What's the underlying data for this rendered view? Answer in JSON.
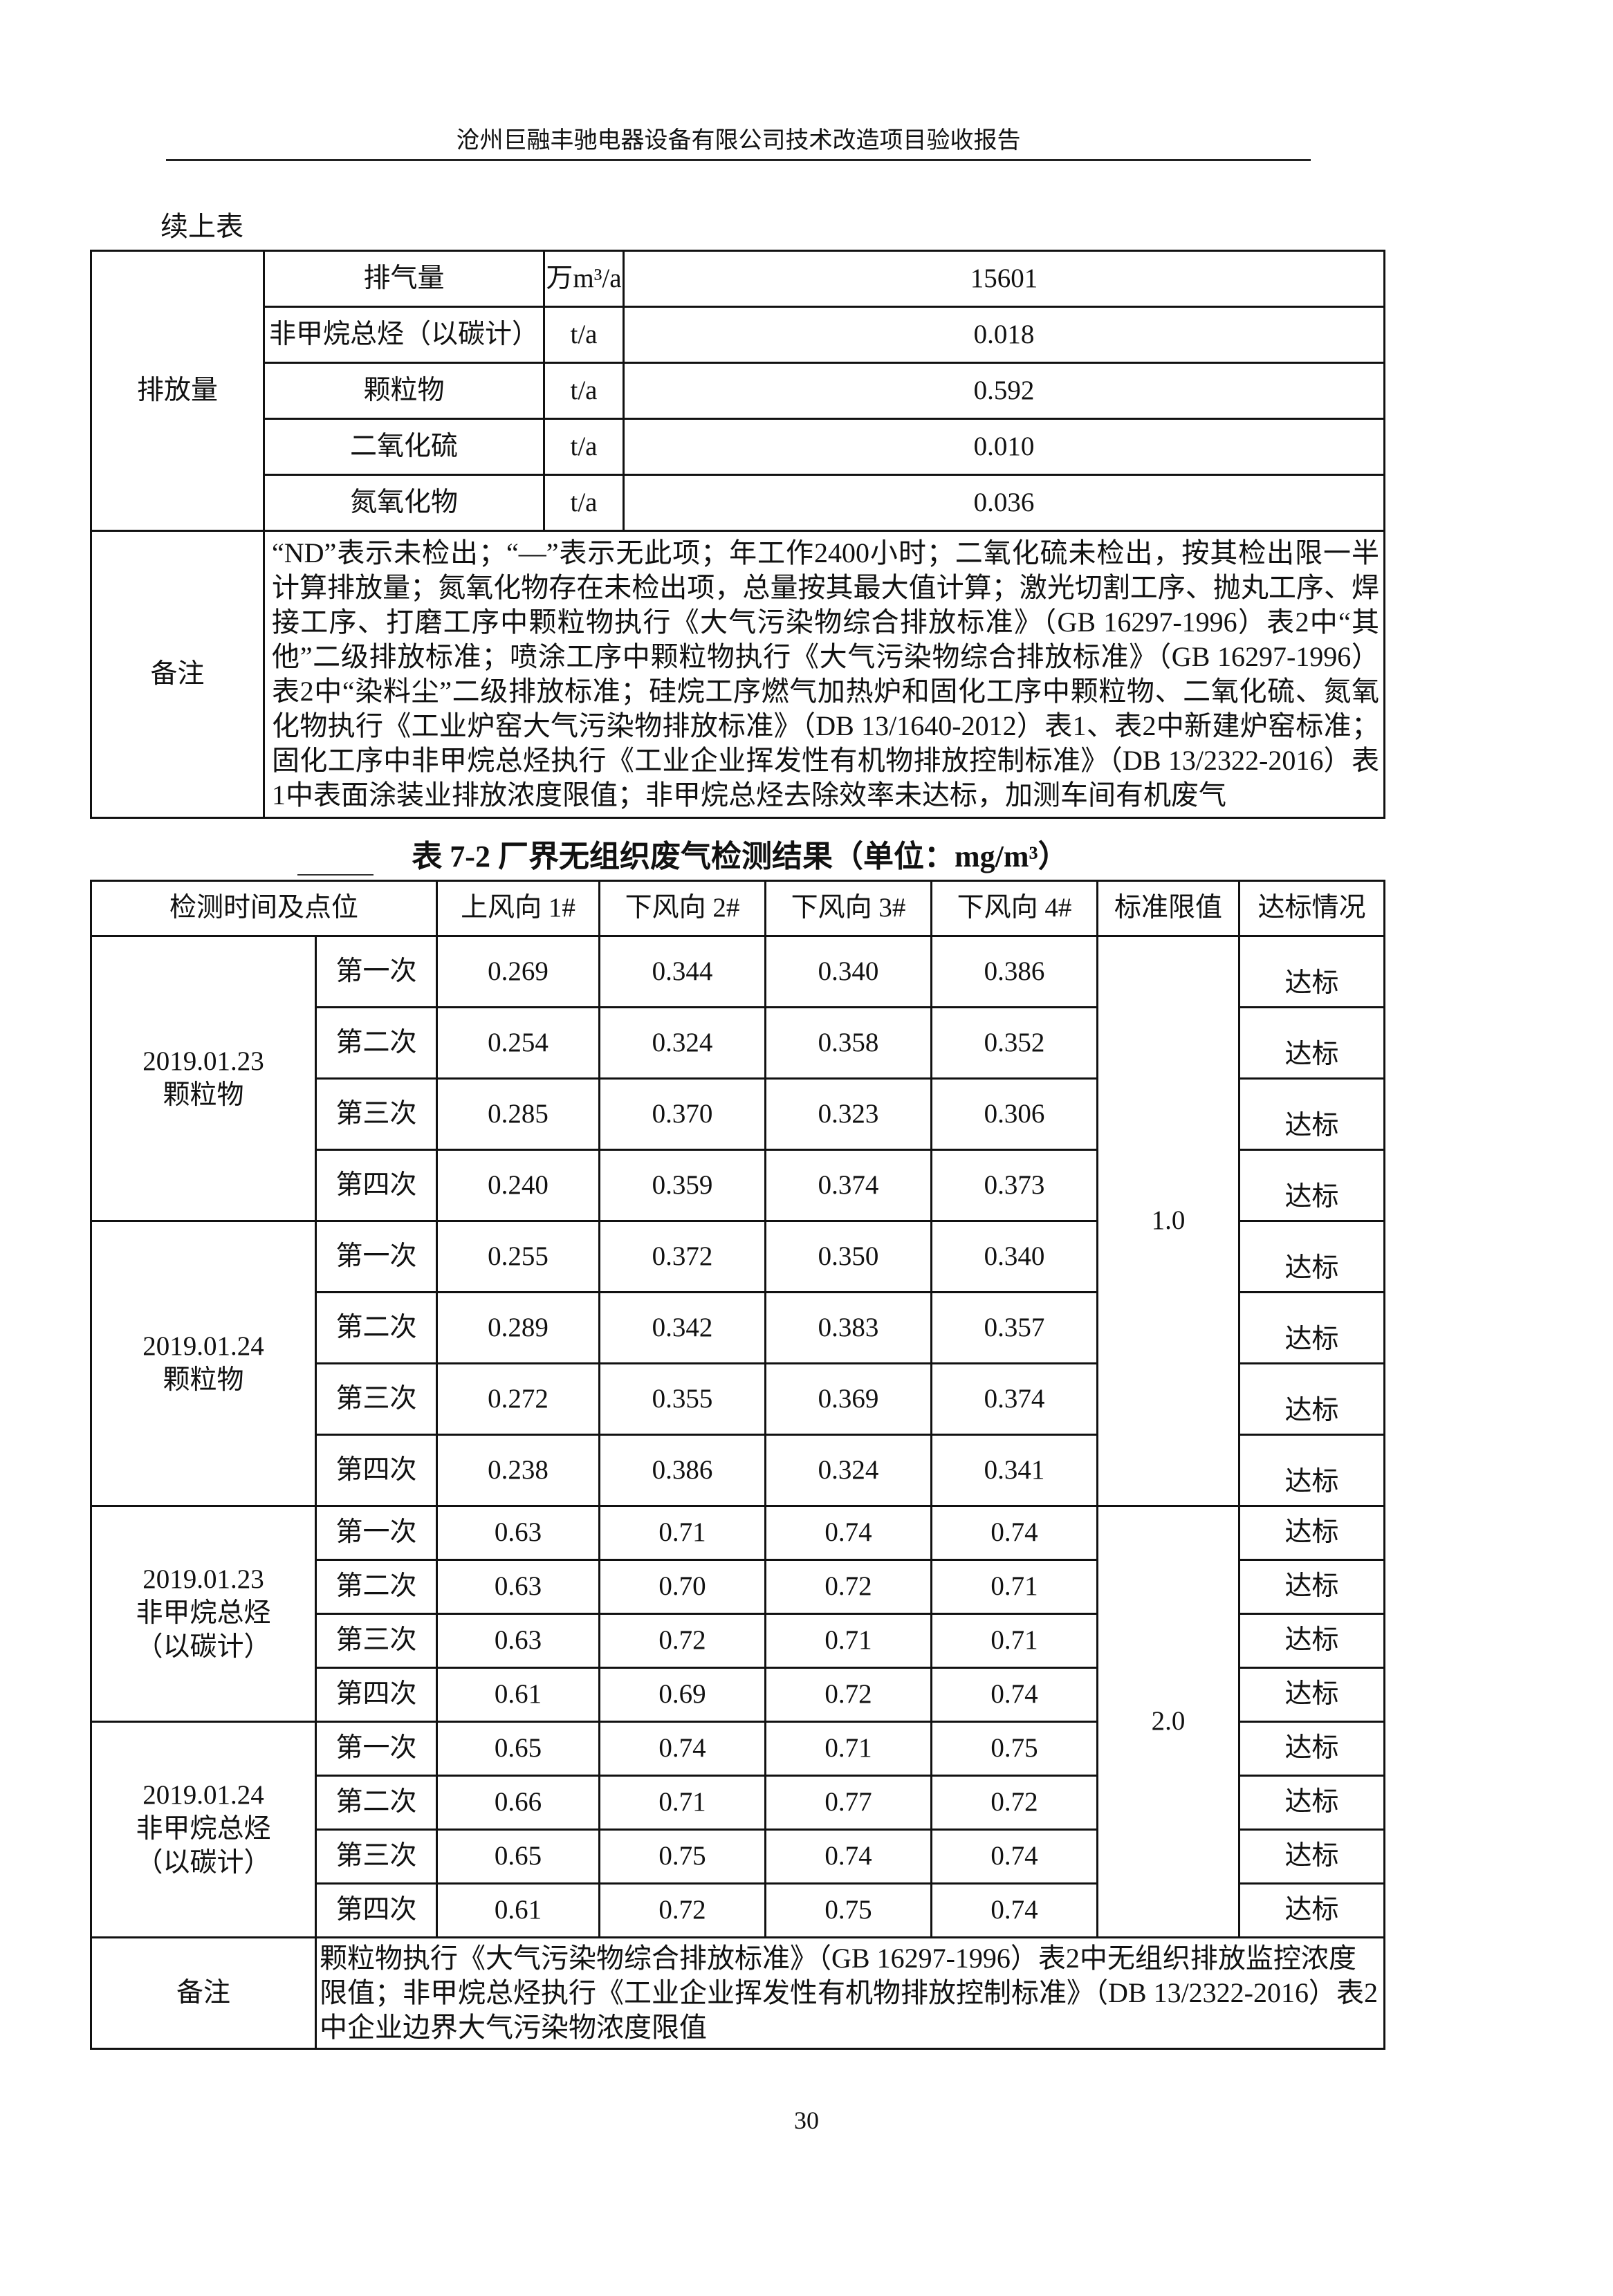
{
  "header": {
    "title": "沧州巨融丰驰电器设备有限公司技术改造项目验收报告"
  },
  "continued_label": "续上表",
  "table1": {
    "group_label": "排放量",
    "rows": [
      {
        "item": "排气量",
        "unit": "万m³/a",
        "value": "15601"
      },
      {
        "item": "非甲烷总烃（以碳计）",
        "unit": "t/a",
        "value": "0.018"
      },
      {
        "item": "颗粒物",
        "unit": "t/a",
        "value": "0.592"
      },
      {
        "item": "二氧化硫",
        "unit": "t/a",
        "value": "0.010"
      },
      {
        "item": "氮氧化物",
        "unit": "t/a",
        "value": "0.036"
      }
    ],
    "note_label": "备注",
    "note_text": "“ND”表示未检出；“—”表示无此项；年工作2400小时；二氧化硫未检出，按其检出限一半计算排放量；氮氧化物存在未检出项，总量按其最大值计算；激光切割工序、抛丸工序、焊接工序、打磨工序中颗粒物执行《大气污染物综合排放标准》（GB 16297-1996）表2中“其他”二级排放标准；喷涂工序中颗粒物执行《大气污染物综合排放标准》（GB 16297-1996）表2中“染料尘”二级排放标准；硅烷工序燃气加热炉和固化工序中颗粒物、二氧化硫、氮氧化物执行《工业炉窑大气污染物排放标准》（DB 13/1640-2012）表1、表2中新建炉窑标准；固化工序中非甲烷总烃执行《工业企业挥发性有机物排放控制标准》（DB 13/2322-2016）表1中表面涂装业排放浓度限值；非甲烷总烃去除效率未达标，加测车间有机废气"
  },
  "table2": {
    "title": "表 7-2  厂界无组织废气检测结果（单位：mg/m³）",
    "headers": [
      "检测时间及点位",
      "上风向 1#",
      "下风向 2#",
      "下风向 3#",
      "下风向 4#",
      "标准限值",
      "达标情况"
    ],
    "groups": [
      {
        "label": "2019.01.23\n颗粒物",
        "limit": "1.0",
        "rows": [
          {
            "time": "第一次",
            "v": [
              "0.269",
              "0.344",
              "0.340",
              "0.386"
            ],
            "status": "达标"
          },
          {
            "time": "第二次",
            "v": [
              "0.254",
              "0.324",
              "0.358",
              "0.352"
            ],
            "status": "达标"
          },
          {
            "time": "第三次",
            "v": [
              "0.285",
              "0.370",
              "0.323",
              "0.306"
            ],
            "status": "达标"
          },
          {
            "time": "第四次",
            "v": [
              "0.240",
              "0.359",
              "0.374",
              "0.373"
            ],
            "status": "达标"
          }
        ]
      },
      {
        "label": "2019.01.24\n颗粒物",
        "rows": [
          {
            "time": "第一次",
            "v": [
              "0.255",
              "0.372",
              "0.350",
              "0.340"
            ],
            "status": "达标"
          },
          {
            "time": "第二次",
            "v": [
              "0.289",
              "0.342",
              "0.383",
              "0.357"
            ],
            "status": "达标"
          },
          {
            "time": "第三次",
            "v": [
              "0.272",
              "0.355",
              "0.369",
              "0.374"
            ],
            "status": "达标"
          },
          {
            "time": "第四次",
            "v": [
              "0.238",
              "0.386",
              "0.324",
              "0.341"
            ],
            "status": "达标"
          }
        ]
      },
      {
        "label": "2019.01.23\n非甲烷总烃\n（以碳计）",
        "limit": "2.0",
        "rows": [
          {
            "time": "第一次",
            "v": [
              "0.63",
              "0.71",
              "0.74",
              "0.74"
            ],
            "status": "达标"
          },
          {
            "time": "第二次",
            "v": [
              "0.63",
              "0.70",
              "0.72",
              "0.71"
            ],
            "status": "达标"
          },
          {
            "time": "第三次",
            "v": [
              "0.63",
              "0.72",
              "0.71",
              "0.71"
            ],
            "status": "达标"
          },
          {
            "time": "第四次",
            "v": [
              "0.61",
              "0.69",
              "0.72",
              "0.74"
            ],
            "status": "达标"
          }
        ]
      },
      {
        "label": "2019.01.24\n非甲烷总烃\n（以碳计）",
        "rows": [
          {
            "time": "第一次",
            "v": [
              "0.65",
              "0.74",
              "0.71",
              "0.75"
            ],
            "status": "达标"
          },
          {
            "time": "第二次",
            "v": [
              "0.66",
              "0.71",
              "0.77",
              "0.72"
            ],
            "status": "达标"
          },
          {
            "time": "第三次",
            "v": [
              "0.65",
              "0.75",
              "0.74",
              "0.74"
            ],
            "status": "达标"
          },
          {
            "time": "第四次",
            "v": [
              "0.61",
              "0.72",
              "0.75",
              "0.74"
            ],
            "status": "达标"
          }
        ]
      }
    ],
    "note_label": "备注",
    "note_text": "颗粒物执行《大气污染物综合排放标准》（GB 16297-1996）表2中无组织排放监控浓度限值；非甲烷总烃执行《工业企业挥发性有机物排放控制标准》（DB 13/2322-2016）表2中企业边界大气污染物浓度限值"
  },
  "page_number": "30"
}
